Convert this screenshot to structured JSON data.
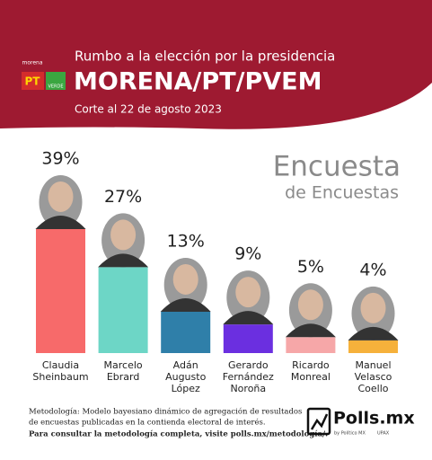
{
  "header": {
    "subtitle": "Rumbo a la elección por la presidencia",
    "title": "MORENA/PT/PVEM",
    "date": "Corte al 22 de agosto 2023",
    "logos": [
      "morena",
      "PT",
      "VERDE"
    ]
  },
  "chart_data": {
    "type": "bar",
    "title": "Encuesta",
    "subtitle": "de Encuestas",
    "categories": [
      "Claudia Sheinbaum",
      "Marcelo Ebrard",
      "Adán Augusto López",
      "Gerardo Fernández Noroña",
      "Ricardo Monreal",
      "Manuel Velasco Coello"
    ],
    "values": [
      39,
      27,
      13,
      9,
      5,
      4
    ],
    "value_labels": [
      "39%",
      "27%",
      "13%",
      "9%",
      "5%",
      "4%"
    ],
    "colors": [
      "#f76a6a",
      "#6dd6c6",
      "#2f7fa9",
      "#6b2fe0",
      "#f6a7a8",
      "#f6b13b"
    ]
  },
  "footer": {
    "lines": [
      "Metodología: Modelo bayesiano dinámico de agregación de resultados",
      "de encuestas publicadas en la contienda electoral de interés."
    ],
    "bold": "Para consultar la metodología completa, visite polls.mx/metodología/.",
    "brand": "Polls.mx",
    "brand_sub": "by Político MX",
    "brand_sub2": "UPAX"
  }
}
